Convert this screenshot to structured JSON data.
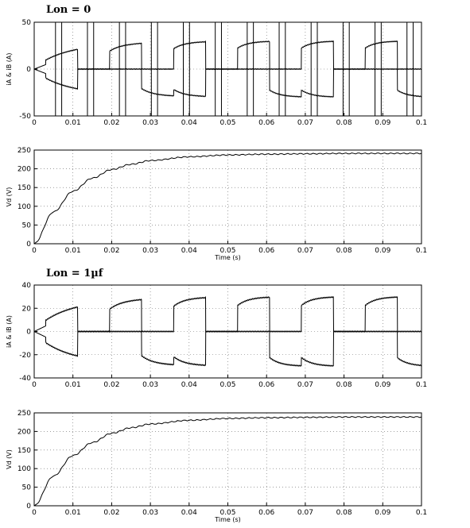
{
  "chart_data": [
    {
      "type": "line",
      "title": "Lon = 0",
      "xlabel": "",
      "ylabel": "iA & iB (A)",
      "xlim": [
        0,
        0.1
      ],
      "ylim": [
        -50,
        50
      ],
      "xticks": [
        "0",
        "0.01",
        "0.02",
        "0.03",
        "0.04",
        "0.05",
        "0.06",
        "0.07",
        "0.08",
        "0.09",
        "0.1"
      ],
      "yticks": [
        "-50",
        "0",
        "50"
      ],
      "grid": true,
      "waveform": {
        "period": 0.0165,
        "first_commutation": 0.0055,
        "steady_state_amplitude": 30,
        "initial_amplitude": 8,
        "spike_amplitude": 50
      }
    },
    {
      "type": "line",
      "title": "",
      "xlabel": "Time (s)",
      "ylabel": "Vd (V)",
      "xlim": [
        0,
        0.1
      ],
      "ylim": [
        0,
        250
      ],
      "xticks": [
        "0",
        "0.01",
        "0.02",
        "0.03",
        "0.04",
        "0.05",
        "0.06",
        "0.07",
        "0.08",
        "0.09",
        "0.1"
      ],
      "yticks": [
        "0",
        "50",
        "100",
        "150",
        "200",
        "250"
      ],
      "grid": true,
      "x": [
        0,
        0.005,
        0.01,
        0.015,
        0.02,
        0.025,
        0.03,
        0.04,
        0.05,
        0.06,
        0.07,
        0.08,
        0.09,
        0.1
      ],
      "y": [
        0,
        85,
        140,
        175,
        198,
        212,
        222,
        232,
        237,
        239,
        240,
        241,
        241,
        241
      ]
    },
    {
      "type": "line",
      "title": "Lon = 1µf",
      "xlabel": "",
      "ylabel": "iA & iB (A)",
      "xlim": [
        0,
        0.1
      ],
      "ylim": [
        -40,
        40
      ],
      "xticks": [
        "0",
        "0.01",
        "0.02",
        "0.03",
        "0.04",
        "0.05",
        "0.06",
        "0.07",
        "0.08",
        "0.09",
        "0.1"
      ],
      "yticks": [
        "-40",
        "-20",
        "0",
        "20",
        "40"
      ],
      "grid": true,
      "waveform": {
        "period": 0.0165,
        "first_commutation": 0.0055,
        "steady_state_amplitude": 30,
        "initial_amplitude": 8,
        "spike_amplitude": 0
      }
    },
    {
      "type": "line",
      "title": "",
      "xlabel": "Time (s)",
      "ylabel": "Vd (V)",
      "xlim": [
        0,
        0.1
      ],
      "ylim": [
        0,
        250
      ],
      "xticks": [
        "0",
        "0.01",
        "0.02",
        "0.03",
        "0.04",
        "0.05",
        "0.06",
        "0.07",
        "0.08",
        "0.09",
        "0.1"
      ],
      "yticks": [
        "0",
        "50",
        "100",
        "150",
        "200",
        "250"
      ],
      "grid": true,
      "x": [
        0,
        0.005,
        0.01,
        0.015,
        0.02,
        0.025,
        0.03,
        0.04,
        0.05,
        0.06,
        0.07,
        0.08,
        0.09,
        0.1
      ],
      "y": [
        0,
        80,
        135,
        170,
        195,
        210,
        220,
        230,
        235,
        237,
        238,
        239,
        239,
        239
      ]
    }
  ]
}
